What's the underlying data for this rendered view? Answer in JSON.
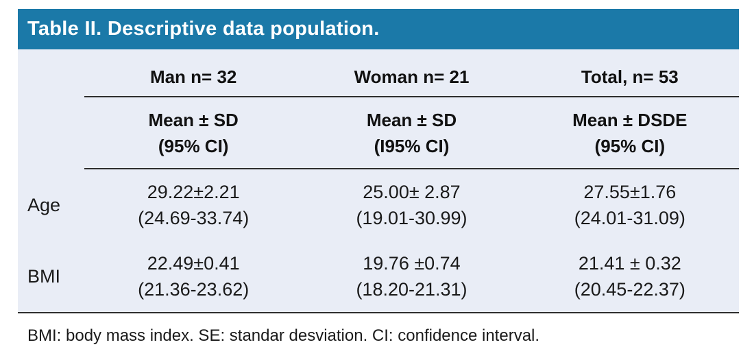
{
  "title": "Table II. Descriptive data population.",
  "table": {
    "columns": [
      {
        "label": "Man n= 32"
      },
      {
        "label": "Woman n= 21"
      },
      {
        "label": "Total, n= 53"
      }
    ],
    "subheaders": [
      {
        "line1": "Mean ± SD",
        "line2": "(95% CI)"
      },
      {
        "line1": "Mean ± SD",
        "line2": "(I95% CI)"
      },
      {
        "line1": "Mean ± DSDE",
        "line2": "(95% CI)"
      }
    ],
    "rows": [
      {
        "label": "Age",
        "cells": [
          {
            "line1": "29.22±2.21",
            "line2": "(24.69-33.74)"
          },
          {
            "line1": "25.00± 2.87",
            "line2": "(19.01-30.99)"
          },
          {
            "line1": "27.55±1.76",
            "line2": "(24.01-31.09)"
          }
        ]
      },
      {
        "label": "BMI",
        "cells": [
          {
            "line1": "22.49±0.41",
            "line2": "(21.36-23.62)"
          },
          {
            "line1": "19.76 ±0.74",
            "line2": "(18.20-21.31)"
          },
          {
            "line1": "21.41 ± 0.32",
            "line2": "(20.45-22.37)"
          }
        ]
      }
    ]
  },
  "footnote": "BMI: body mass index. SE: standar desviation. CI: confidence interval.",
  "colors": {
    "header_bg": "#1b79a8",
    "panel_bg": "#e9edf6",
    "title_text": "#ffffff",
    "body_text": "#1a1a1a",
    "rule": "#2e2e2e"
  },
  "chart_data": {
    "type": "table",
    "title": "Table II. Descriptive data population.",
    "column_headers": [
      "",
      "Man n= 32",
      "Woman n= 21",
      "Total, n= 53"
    ],
    "subheaders": [
      "",
      "Mean ± SD (95% CI)",
      "Mean ± SD (I95% CI)",
      "Mean ± DSDE (95% CI)"
    ],
    "rows": [
      [
        "Age",
        "29.22±2.21 (24.69-33.74)",
        "25.00± 2.87 (19.01-30.99)",
        "27.55±1.76 (24.01-31.09)"
      ],
      [
        "BMI",
        "22.49±0.41 (21.36-23.62)",
        "19.76 ±0.74 (18.20-21.31)",
        "21.41 ± 0.32 (20.45-22.37)"
      ]
    ],
    "footnote": "BMI: body mass index. SE: standar desviation. CI: confidence interval."
  }
}
